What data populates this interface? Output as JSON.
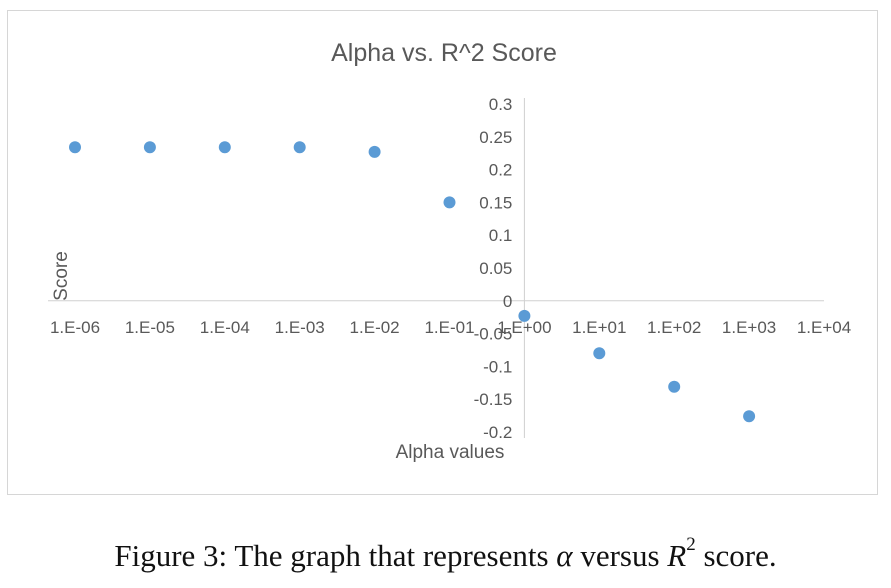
{
  "chart_data": {
    "type": "scatter",
    "title": "Alpha vs. R^2 Score",
    "xlabel": "Alpha values",
    "ylabel": "Score",
    "x_scale": "log",
    "x_ticks": [
      "1.E-06",
      "1.E-05",
      "1.E-04",
      "1.E-03",
      "1.E-02",
      "1.E-01",
      "1.E+00",
      "1.E+01",
      "1.E+02",
      "1.E+03",
      "1.E+04"
    ],
    "y_ticks": [
      "0.3",
      "0.25",
      "0.2",
      "0.15",
      "0.1",
      "0.05",
      "0",
      "-0.05",
      "-0.1",
      "-0.15",
      "-0.2"
    ],
    "xlim": [
      1e-06,
      10000
    ],
    "ylim": [
      -0.2,
      0.3
    ],
    "grid": false,
    "legend": false,
    "marker_color": "#5b9bd5",
    "series": [
      {
        "x": [
          1e-06,
          1e-05,
          0.0001,
          0.001,
          0.01,
          0.1,
          1,
          10,
          100,
          1000
        ],
        "y": [
          0.234,
          0.234,
          0.234,
          0.234,
          0.227,
          0.15,
          -0.023,
          -0.08,
          -0.131,
          -0.176
        ]
      }
    ]
  },
  "caption": {
    "prefix": "Figure 3: The graph that represents ",
    "alpha": "α",
    "middle": " versus ",
    "r": "R",
    "sup": "2",
    "suffix": " score."
  }
}
